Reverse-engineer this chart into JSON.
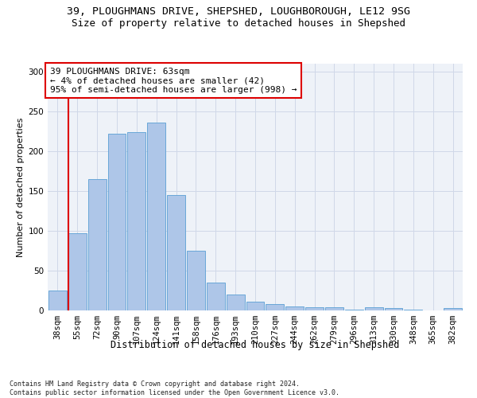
{
  "title1": "39, PLOUGHMANS DRIVE, SHEPSHED, LOUGHBOROUGH, LE12 9SG",
  "title2": "Size of property relative to detached houses in Shepshed",
  "xlabel": "Distribution of detached houses by size in Shepshed",
  "ylabel": "Number of detached properties",
  "footnote": "Contains HM Land Registry data © Crown copyright and database right 2024.\nContains public sector information licensed under the Open Government Licence v3.0.",
  "bar_labels": [
    "38sqm",
    "55sqm",
    "72sqm",
    "90sqm",
    "107sqm",
    "124sqm",
    "141sqm",
    "158sqm",
    "176sqm",
    "193sqm",
    "210sqm",
    "227sqm",
    "244sqm",
    "262sqm",
    "279sqm",
    "296sqm",
    "313sqm",
    "330sqm",
    "348sqm",
    "365sqm",
    "382sqm"
  ],
  "bar_values": [
    25,
    97,
    165,
    222,
    224,
    236,
    145,
    75,
    35,
    20,
    11,
    8,
    5,
    4,
    4,
    1,
    4,
    3,
    1,
    0,
    3
  ],
  "bar_color": "#aec6e8",
  "bar_edge_color": "#5a9fd4",
  "grid_color": "#d0d8e8",
  "annotation_box_text": "39 PLOUGHMANS DRIVE: 63sqm\n← 4% of detached houses are smaller (42)\n95% of semi-detached houses are larger (998) →",
  "red_line_color": "#dd0000",
  "box_edge_color": "#dd0000",
  "ylim": [
    0,
    310
  ],
  "yticks": [
    0,
    50,
    100,
    150,
    200,
    250,
    300
  ],
  "bg_color": "#eef2f8",
  "title1_fontsize": 9.5,
  "title2_fontsize": 9,
  "xlabel_fontsize": 8.5,
  "ylabel_fontsize": 8,
  "annotation_fontsize": 8,
  "footnote_fontsize": 6,
  "tick_fontsize": 7.5
}
